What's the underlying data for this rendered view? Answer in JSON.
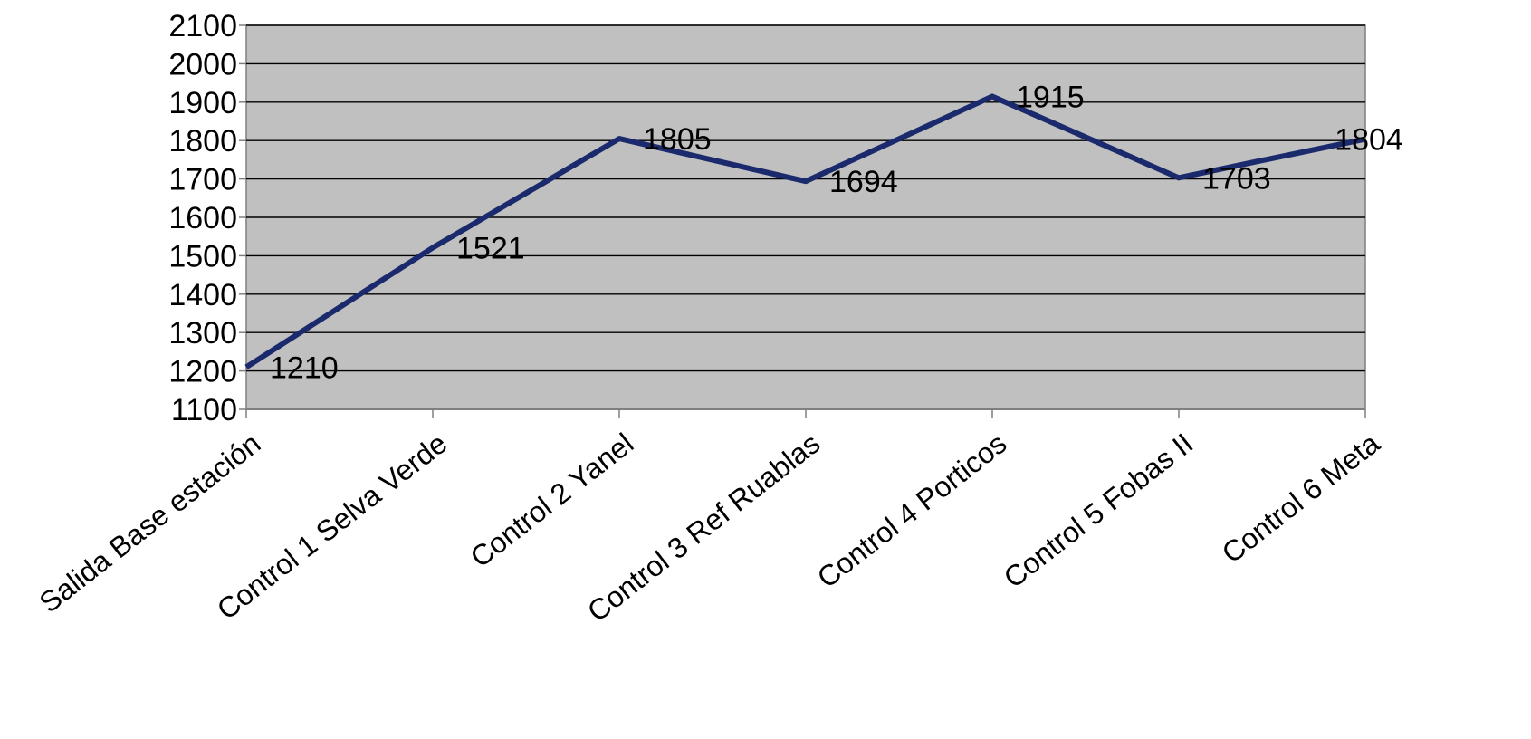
{
  "chart_data": {
    "type": "line",
    "title": "",
    "xlabel": "",
    "ylabel": "",
    "categories": [
      "Salida Base estación",
      "Control 1 Selva Verde",
      "Control 2 Yanel",
      "Control 3 Ref Ruablas",
      "Control 4 Porticos",
      "Control 5 Fobas II",
      "Control 6 Meta"
    ],
    "series": [
      {
        "values": [
          1210,
          1521,
          1805,
          1694,
          1915,
          1703,
          1804
        ]
      }
    ],
    "data_labels": [
      "1210",
      "1521",
      "1805",
      "1694",
      "1915",
      "1703",
      "1804"
    ],
    "ylim": [
      1100,
      2100
    ],
    "yticks": [
      1100,
      1200,
      1300,
      1400,
      1500,
      1600,
      1700,
      1800,
      1900,
      2000,
      2100
    ],
    "ytick_labels": [
      "1100",
      "1200",
      "1300",
      "1400",
      "1500",
      "1600",
      "1700",
      "1800",
      "1900",
      "2000",
      "2100"
    ],
    "grid": true,
    "legend": "none",
    "colors": {
      "plot_background": "#c0c0c0",
      "line": "#1a2a6c",
      "gridline": "#000000",
      "axis": "#7f7f7f"
    }
  }
}
